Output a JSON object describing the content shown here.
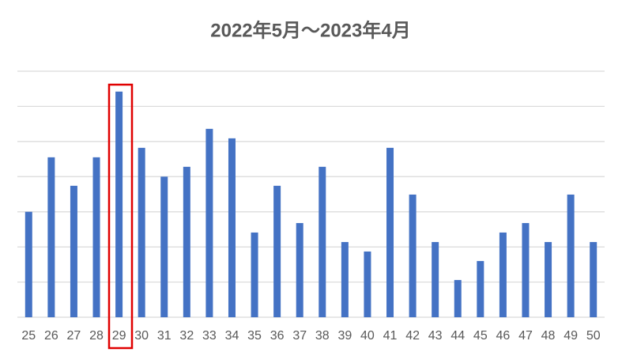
{
  "chart_data": {
    "type": "bar",
    "title": "2022年5月～2023年4月",
    "categories": [
      "25",
      "26",
      "27",
      "28",
      "29",
      "30",
      "31",
      "32",
      "33",
      "34",
      "35",
      "36",
      "37",
      "38",
      "39",
      "40",
      "41",
      "42",
      "43",
      "44",
      "45",
      "46",
      "47",
      "48",
      "49",
      "50"
    ],
    "values": [
      3.0,
      4.55,
      3.74,
      4.55,
      6.42,
      4.82,
      4.0,
      4.28,
      5.36,
      5.09,
      2.41,
      3.74,
      2.68,
      4.28,
      2.14,
      1.87,
      4.82,
      3.49,
      2.14,
      1.06,
      1.6,
      2.41,
      2.68,
      2.14,
      3.49,
      2.14
    ],
    "color": "#4472c4",
    "ylim": [
      0,
      7
    ],
    "yticks": [
      0,
      1,
      2,
      3,
      4,
      5,
      6,
      7
    ],
    "grid": true
  }
}
